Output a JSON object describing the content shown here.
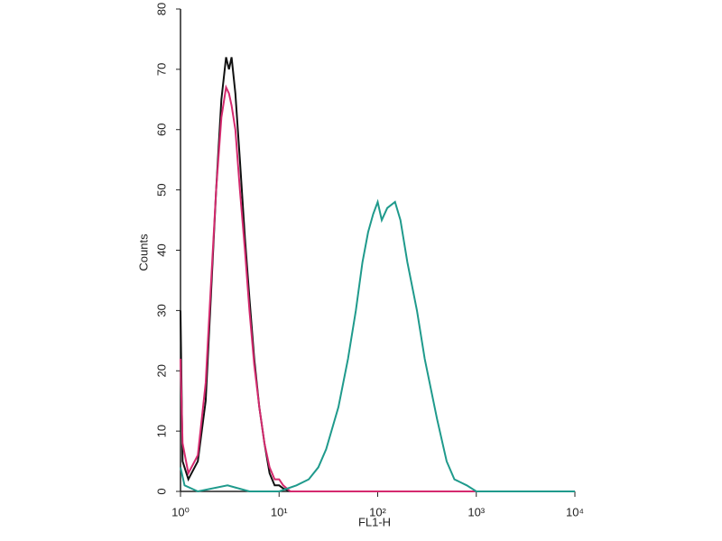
{
  "chart_data": {
    "type": "line",
    "x_label": "FL1-H",
    "y_label": "Counts",
    "xscale": "log",
    "xlim": [
      1,
      10000
    ],
    "xticks": [
      {
        "value": 1,
        "label": "10⁰"
      },
      {
        "value": 10,
        "label": "10¹"
      },
      {
        "value": 100,
        "label": "10²"
      },
      {
        "value": 1000,
        "label": "10³"
      },
      {
        "value": 10000,
        "label": "10⁴"
      }
    ],
    "ylim": [
      0,
      80
    ],
    "yticks": [
      0,
      10,
      20,
      30,
      40,
      50,
      60,
      70,
      80
    ],
    "series": [
      {
        "color": "#111111",
        "x": [
          1,
          1.05,
          1.2,
          1.5,
          1.8,
          2,
          2.3,
          2.6,
          2.9,
          3.1,
          3.3,
          3.6,
          4,
          4.5,
          5,
          5.6,
          6.3,
          7.1,
          8,
          9,
          10,
          11,
          13,
          20,
          100,
          1000,
          10000
        ],
        "values": [
          30,
          5,
          2,
          5,
          15,
          30,
          50,
          65,
          72,
          70,
          72,
          66,
          55,
          42,
          32,
          22,
          14,
          8,
          3,
          1,
          1,
          0.5,
          0,
          0,
          0,
          0,
          0
        ]
      },
      {
        "color": "#d42a6e",
        "x": [
          1,
          1.05,
          1.2,
          1.5,
          1.8,
          2,
          2.3,
          2.6,
          2.9,
          3.1,
          3.3,
          3.6,
          4,
          4.5,
          5,
          5.6,
          6.3,
          7.1,
          8,
          9,
          10,
          11,
          13,
          100,
          1000,
          10000
        ],
        "values": [
          22,
          8,
          3,
          6,
          18,
          32,
          50,
          62,
          67,
          66,
          64,
          60,
          50,
          40,
          30,
          21,
          14,
          8,
          4,
          2,
          2,
          1,
          0,
          0,
          0,
          0
        ]
      },
      {
        "color": "#1f9a8c",
        "x": [
          1,
          1.1,
          1.5,
          3,
          5,
          10,
          15,
          20,
          25,
          30,
          40,
          50,
          60,
          70,
          80,
          90,
          100,
          110,
          125,
          150,
          170,
          200,
          250,
          300,
          400,
          500,
          600,
          800,
          1000,
          10000
        ],
        "values": [
          4,
          1,
          0,
          1,
          0,
          0,
          1,
          2,
          4,
          7,
          14,
          22,
          30,
          38,
          43,
          46,
          48,
          45,
          47,
          48,
          45,
          38,
          30,
          22,
          12,
          5,
          2,
          1,
          0,
          0
        ]
      }
    ]
  }
}
